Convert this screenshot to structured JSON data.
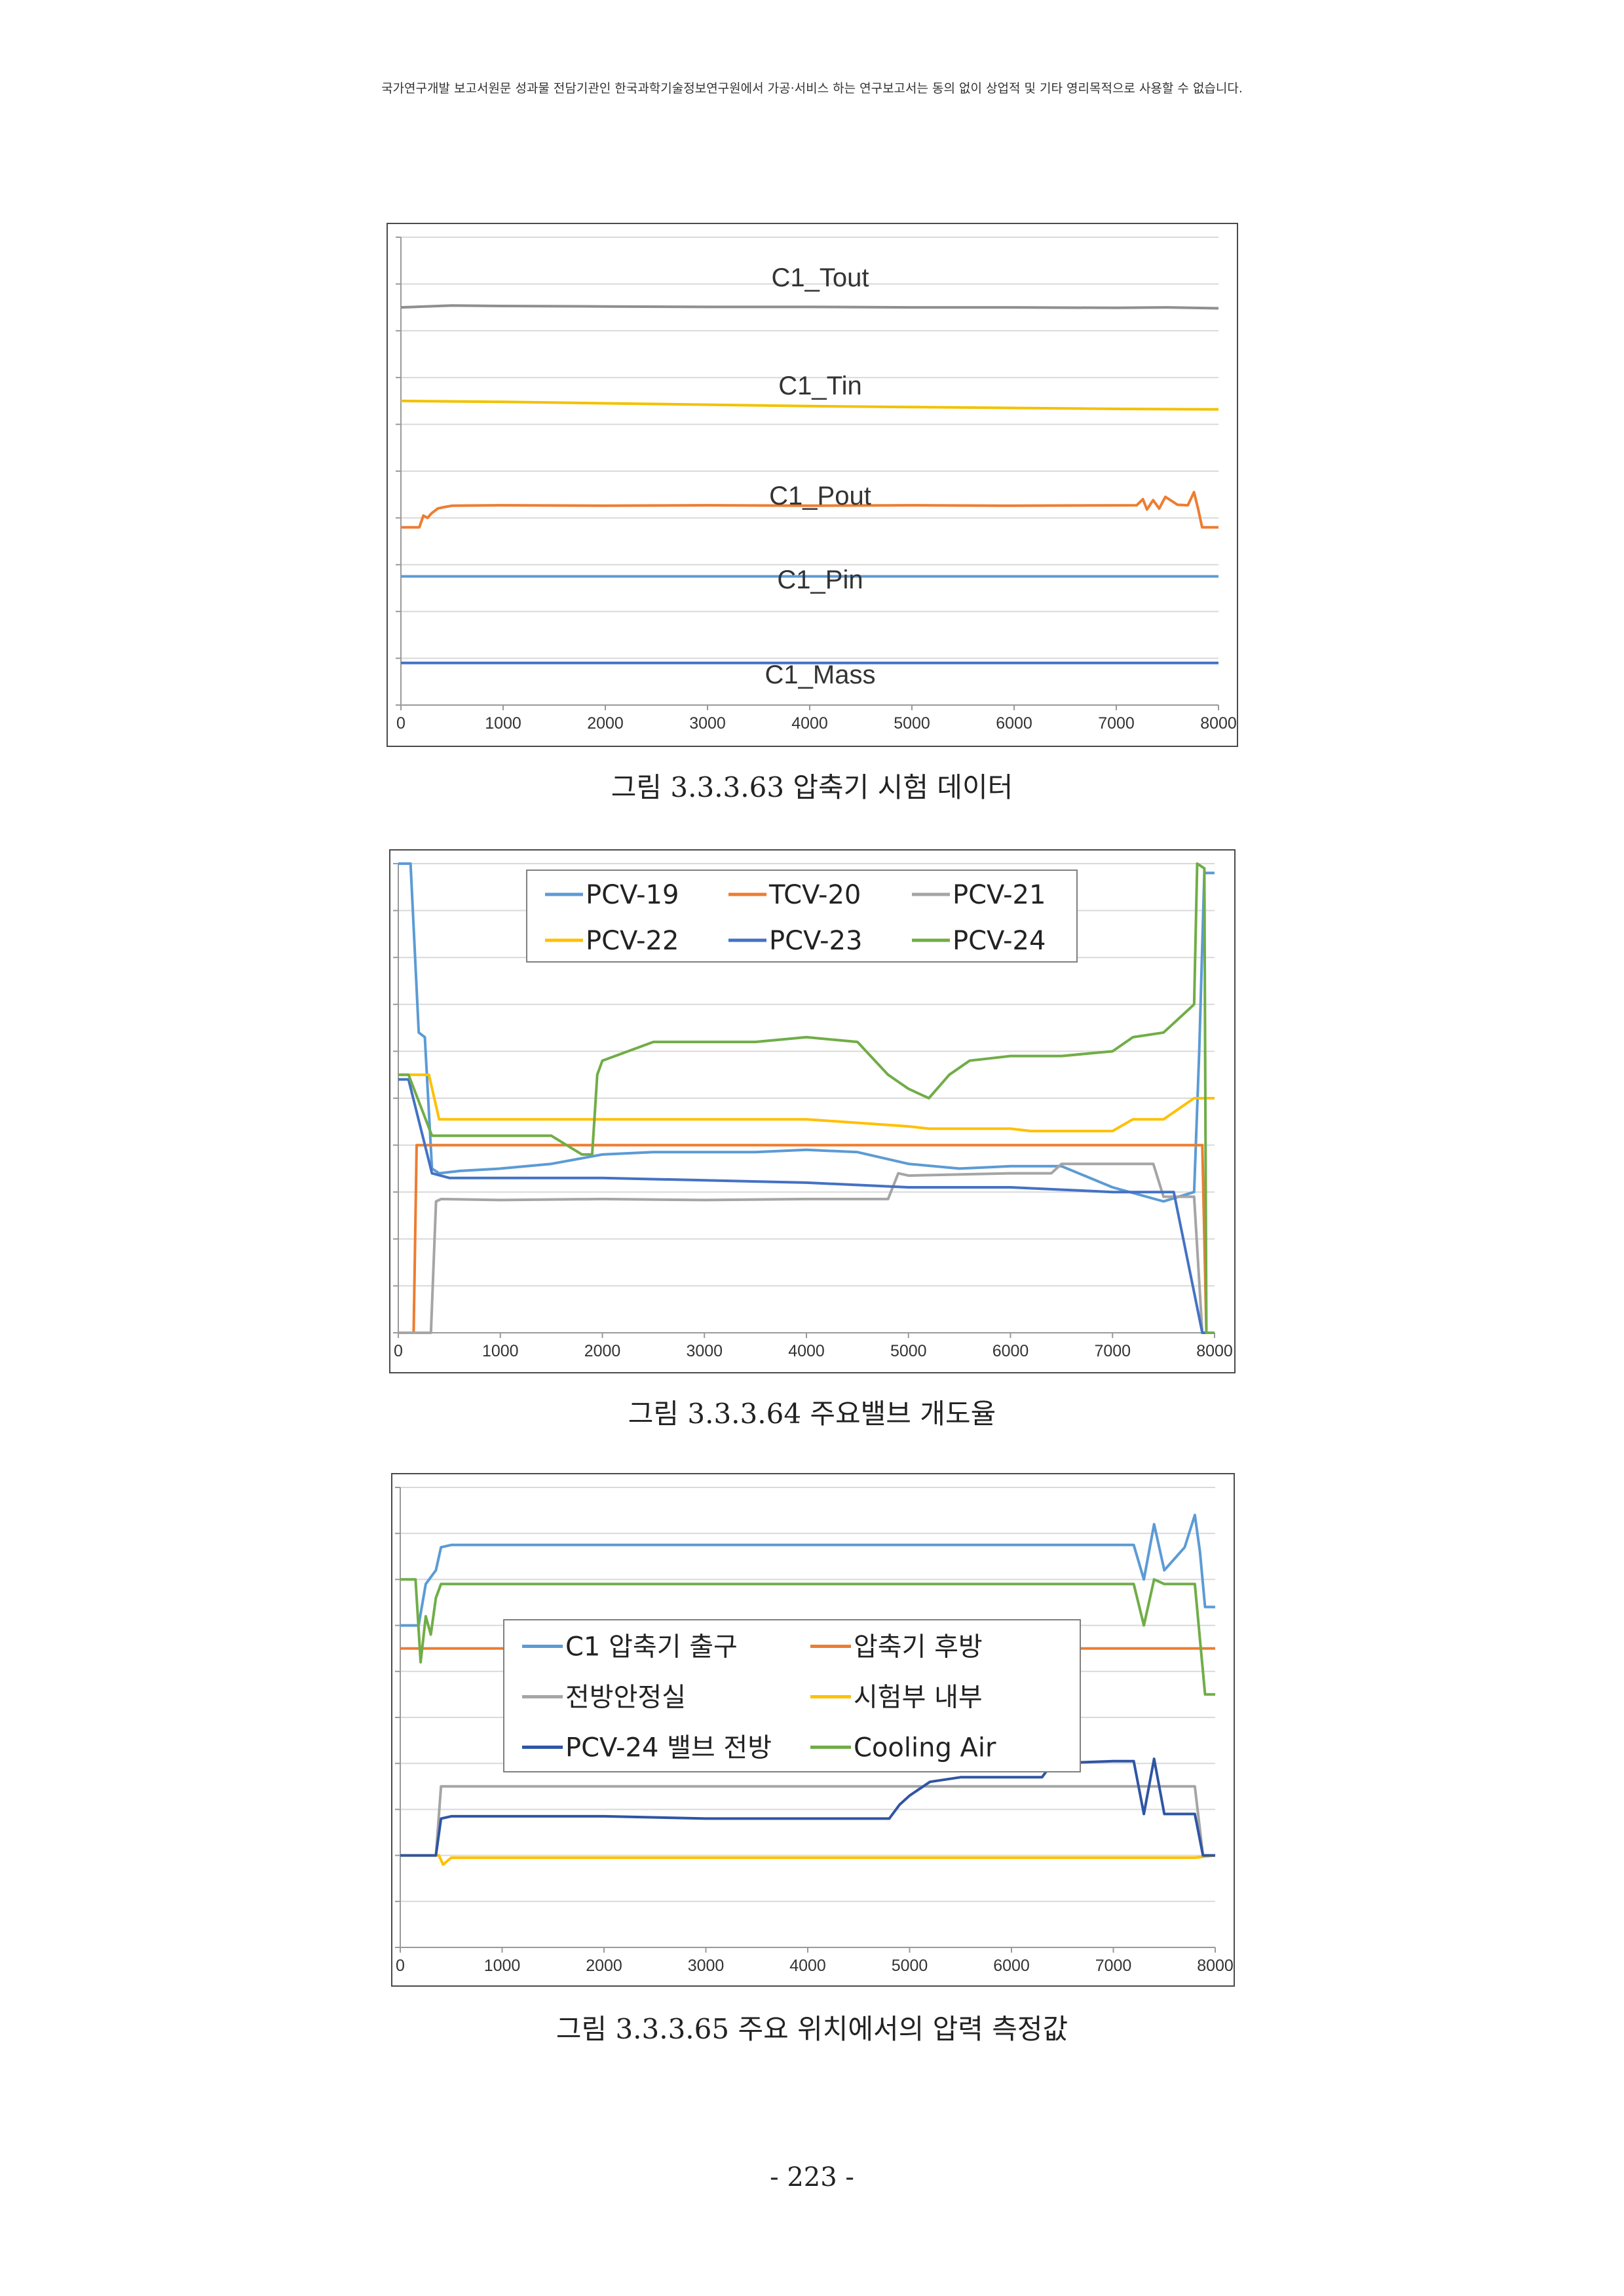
{
  "page": {
    "header_note": "국가연구개발 보고서원문 성과물 전담기관인 한국과학기술정보연구원에서 가공·서비스 하는 연구보고서는 동의 없이 상업적 및 기타 영리목적으로 사용할 수 없습니다.",
    "page_number": "- 223 -"
  },
  "chart_data": [
    {
      "type": "line",
      "caption": "그림 3.3.3.63 압축기 시험 데이터",
      "xlim": [
        0,
        8000
      ],
      "xticks": [
        "0",
        "1000",
        "2000",
        "3000",
        "4000",
        "5000",
        "6000",
        "7000",
        "8000"
      ],
      "ylim": [
        0,
        100
      ],
      "grid": true,
      "legend": "inline-labels",
      "series": [
        {
          "name": "C1_Tout",
          "color": "#8f8f8f",
          "x": [
            0,
            500,
            1000,
            2000,
            3000,
            4000,
            5000,
            6000,
            7000,
            7500,
            8000
          ],
          "y": [
            85.0,
            85.4,
            85.3,
            85.2,
            85.1,
            85.1,
            85.0,
            85.0,
            84.9,
            85.0,
            84.8
          ]
        },
        {
          "name": "C1_Tin",
          "color": "#f2c200",
          "x": [
            0,
            1000,
            2000,
            3000,
            4000,
            5000,
            6000,
            7000,
            8000
          ],
          "y": [
            65.0,
            64.8,
            64.5,
            64.2,
            63.9,
            63.7,
            63.5,
            63.3,
            63.2
          ]
        },
        {
          "name": "C1_Pout",
          "color": "#ed7d31",
          "x": [
            0,
            180,
            220,
            260,
            300,
            360,
            420,
            500,
            1000,
            2000,
            3000,
            4000,
            5000,
            6000,
            7200,
            7260,
            7300,
            7360,
            7420,
            7480,
            7600,
            7700,
            7760,
            7800,
            7840,
            8000
          ],
          "y": [
            38.0,
            38.0,
            40.5,
            40.0,
            41.0,
            42.0,
            42.3,
            42.6,
            42.7,
            42.6,
            42.7,
            42.6,
            42.7,
            42.6,
            42.7,
            44.0,
            41.8,
            43.8,
            42.0,
            44.5,
            42.8,
            42.7,
            45.5,
            42.0,
            38.0,
            38.0
          ]
        },
        {
          "name": "C1_Pin",
          "color": "#5b9bd5",
          "x": [
            0,
            8000
          ],
          "y": [
            27.5,
            27.5
          ]
        },
        {
          "name": "C1_Mass",
          "color": "#4472c4",
          "x": [
            0,
            8000
          ],
          "y": [
            9.0,
            9.0
          ]
        }
      ]
    },
    {
      "type": "line",
      "caption": "그림 3.3.3.64 주요밸브 개도율",
      "xlim": [
        0,
        8000
      ],
      "xticks": [
        "0",
        "1000",
        "2000",
        "3000",
        "4000",
        "5000",
        "6000",
        "7000",
        "8000"
      ],
      "ylim": [
        0,
        100
      ],
      "grid": true,
      "legend": "top",
      "series": [
        {
          "name": "PCV-19",
          "color": "#5b9bd5",
          "x": [
            0,
            120,
            200,
            260,
            330,
            400,
            600,
            1000,
            1500,
            2000,
            2500,
            3000,
            3500,
            4000,
            4500,
            5000,
            5500,
            6000,
            6500,
            7000,
            7500,
            7800,
            7850,
            7900,
            8000
          ],
          "y": [
            100.0,
            100.0,
            64.0,
            63.0,
            35.0,
            34.0,
            34.5,
            35.0,
            36.0,
            38.0,
            38.5,
            38.5,
            38.5,
            39.0,
            38.5,
            36.0,
            35.0,
            35.5,
            35.5,
            31.0,
            28.0,
            30.0,
            60.0,
            98.0,
            98.0
          ]
        },
        {
          "name": "TCV-20",
          "color": "#ed7d31",
          "x": [
            0,
            150,
            180,
            500,
            1000,
            2000,
            3000,
            4000,
            5000,
            6000,
            7000,
            7880,
            7920,
            8000
          ],
          "y": [
            0.0,
            0.0,
            40.0,
            40.0,
            40.0,
            40.0,
            40.0,
            40.0,
            40.0,
            40.0,
            40.0,
            40.0,
            0.0,
            0.0
          ]
        },
        {
          "name": "PCV-21",
          "color": "#a5a5a5",
          "x": [
            0,
            320,
            370,
            420,
            1000,
            2000,
            3000,
            4000,
            4800,
            4900,
            5000,
            6000,
            6400,
            6500,
            7000,
            7400,
            7500,
            7800,
            7880,
            8000
          ],
          "y": [
            0.0,
            0.0,
            28.0,
            28.5,
            28.3,
            28.5,
            28.3,
            28.5,
            28.5,
            34.0,
            33.5,
            34.0,
            34.0,
            36.0,
            36.0,
            36.0,
            29.0,
            29.0,
            0.0,
            0.0
          ]
        },
        {
          "name": "PCV-22",
          "color": "#ffc000",
          "x": [
            0,
            300,
            400,
            1000,
            2000,
            3000,
            4000,
            5000,
            5200,
            6000,
            6200,
            7000,
            7200,
            7500,
            7800,
            8000
          ],
          "y": [
            55.0,
            55.0,
            45.5,
            45.5,
            45.5,
            45.5,
            45.5,
            44.0,
            43.5,
            43.5,
            43.0,
            43.0,
            45.5,
            45.5,
            50.0,
            50.0
          ]
        },
        {
          "name": "PCV-23",
          "color": "#4472c4",
          "x": [
            0,
            100,
            330,
            500,
            1000,
            2000,
            3000,
            4000,
            5000,
            6000,
            6500,
            7000,
            7500,
            7600,
            7880,
            8000
          ],
          "y": [
            54.0,
            54.0,
            34.0,
            33.0,
            33.0,
            33.0,
            32.5,
            32.0,
            31.0,
            31.0,
            30.5,
            30.0,
            30.0,
            30.0,
            0.0,
            0.0
          ]
        },
        {
          "name": "PCV-24",
          "color": "#70ad47",
          "x": [
            0,
            100,
            330,
            500,
            1000,
            1500,
            1800,
            1900,
            1950,
            2000,
            2500,
            3000,
            3500,
            4000,
            4500,
            4800,
            5000,
            5200,
            5400,
            5600,
            6000,
            6500,
            7000,
            7200,
            7500,
            7700,
            7800,
            7830,
            7900,
            7920,
            8000
          ],
          "y": [
            55.0,
            55.0,
            42.0,
            42.0,
            42.0,
            42.0,
            38.0,
            38.0,
            55.0,
            58.0,
            62.0,
            62.0,
            62.0,
            63.0,
            62.0,
            55.0,
            52.0,
            50.0,
            55.0,
            58.0,
            59.0,
            59.0,
            60.0,
            63.0,
            64.0,
            68.0,
            70.0,
            100.0,
            99.0,
            0.0,
            0.0
          ]
        }
      ]
    },
    {
      "type": "line",
      "caption": "그림 3.3.3.65 주요 위치에서의 압력 측정값",
      "xlim": [
        0,
        8000
      ],
      "xticks": [
        "0",
        "1000",
        "2000",
        "3000",
        "4000",
        "5000",
        "6000",
        "7000",
        "8000"
      ],
      "ylim": [
        0,
        100
      ],
      "grid": true,
      "legend": "center-left",
      "series": [
        {
          "name": "C1 압축기 출구",
          "color": "#5b9bd5",
          "x": [
            0,
            180,
            250,
            350,
            400,
            500,
            1000,
            2000,
            3000,
            4000,
            5000,
            6000,
            7000,
            7200,
            7300,
            7400,
            7500,
            7700,
            7800,
            7850,
            7900,
            8000
          ],
          "y": [
            70.0,
            70.0,
            79.0,
            82.0,
            87.0,
            87.5,
            87.5,
            87.5,
            87.5,
            87.5,
            87.5,
            87.5,
            87.5,
            87.5,
            80.0,
            92.0,
            82.0,
            87.0,
            94.0,
            86.0,
            74.0,
            74.0
          ]
        },
        {
          "name": "압축기 후방",
          "color": "#ed7d31",
          "x": [
            0,
            150,
            180,
            250,
            300,
            7880,
            7920,
            8000
          ],
          "y": [
            65.0,
            65.0,
            65.0,
            65.0,
            65.0,
            65.0,
            65.0,
            65.0
          ]
        },
        {
          "name": "전방안정실",
          "color": "#a5a5a5",
          "x": [
            0,
            350,
            400,
            500,
            1000,
            2000,
            3000,
            4000,
            5000,
            6000,
            7000,
            7400,
            7800,
            7880,
            8000
          ],
          "y": [
            20.0,
            20.0,
            35.0,
            35.0,
            35.0,
            35.0,
            35.0,
            35.0,
            35.0,
            35.0,
            35.0,
            35.0,
            35.0,
            20.0,
            20.0
          ]
        },
        {
          "name": "시험부 내부",
          "color": "#ffc000",
          "x": [
            0,
            380,
            420,
            500,
            1000,
            2000,
            3000,
            4000,
            5000,
            6000,
            7000,
            7800,
            8000
          ],
          "y": [
            20.0,
            20.0,
            18.0,
            19.5,
            19.5,
            19.5,
            19.5,
            19.5,
            19.5,
            19.5,
            19.5,
            19.5,
            20.0
          ]
        },
        {
          "name": "PCV-24 밸브 전방",
          "color": "#2f55a4",
          "x": [
            0,
            350,
            400,
            500,
            1000,
            2000,
            3000,
            4000,
            4800,
            4900,
            5000,
            5200,
            5500,
            6000,
            6300,
            6400,
            7000,
            7200,
            7300,
            7400,
            7500,
            7700,
            7800,
            7880,
            8000
          ],
          "y": [
            20.0,
            20.0,
            28.0,
            28.5,
            28.5,
            28.5,
            28.0,
            28.0,
            28.0,
            31.0,
            33.0,
            36.0,
            37.0,
            37.0,
            37.0,
            40.0,
            40.5,
            40.5,
            29.0,
            41.0,
            29.0,
            29.0,
            29.0,
            20.0,
            20.0
          ]
        },
        {
          "name": "Cooling Air",
          "color": "#70ad47",
          "x": [
            0,
            150,
            200,
            250,
            300,
            350,
            400,
            500,
            1000,
            2000,
            3000,
            4000,
            5000,
            6000,
            7000,
            7200,
            7300,
            7400,
            7500,
            7800,
            7900,
            8000
          ],
          "y": [
            80.0,
            80.0,
            62.0,
            72.0,
            68.0,
            76.0,
            79.0,
            79.0,
            79.0,
            79.0,
            79.0,
            79.0,
            79.0,
            79.0,
            79.0,
            79.0,
            70.0,
            80.0,
            79.0,
            79.0,
            55.0,
            55.0
          ]
        }
      ]
    }
  ]
}
